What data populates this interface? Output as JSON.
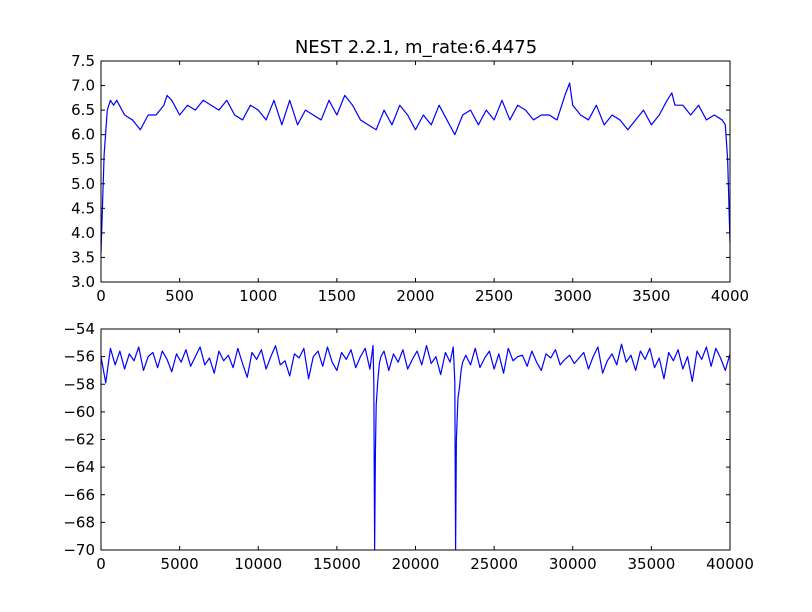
{
  "chart_data": [
    {
      "type": "line",
      "title": "NEST 2.2.1, m_rate:6.4475",
      "xlabel": "",
      "ylabel": "",
      "xlim": [
        0,
        4000
      ],
      "ylim": [
        3.0,
        7.5
      ],
      "xticks": [
        "0",
        "500",
        "1000",
        "1500",
        "2000",
        "2500",
        "3000",
        "3500",
        "4000"
      ],
      "yticks": [
        "3.0",
        "3.5",
        "4.0",
        "4.5",
        "5.0",
        "5.5",
        "6.0",
        "6.5",
        "7.0",
        "7.5"
      ],
      "grid": false,
      "line_color": "#0000ff",
      "series": [
        {
          "x": [
            0,
            20,
            40,
            60,
            80,
            100,
            150,
            200,
            250,
            300,
            350,
            400,
            420,
            450,
            500,
            550,
            600,
            650,
            700,
            750,
            800,
            850,
            900,
            950,
            1000,
            1050,
            1100,
            1150,
            1200,
            1250,
            1300,
            1350,
            1400,
            1450,
            1500,
            1550,
            1600,
            1650,
            1700,
            1750,
            1800,
            1850,
            1900,
            1950,
            2000,
            2050,
            2100,
            2150,
            2200,
            2250,
            2300,
            2350,
            2400,
            2450,
            2500,
            2550,
            2600,
            2650,
            2700,
            2750,
            2800,
            2850,
            2900,
            2950,
            2980,
            3000,
            3050,
            3100,
            3150,
            3200,
            3250,
            3300,
            3350,
            3400,
            3450,
            3500,
            3550,
            3600,
            3630,
            3650,
            3700,
            3750,
            3800,
            3850,
            3900,
            3950,
            3970,
            3985,
            4000
          ],
          "y": [
            3.6,
            5.6,
            6.5,
            6.7,
            6.6,
            6.7,
            6.4,
            6.3,
            6.1,
            6.4,
            6.4,
            6.6,
            6.8,
            6.7,
            6.4,
            6.6,
            6.5,
            6.7,
            6.6,
            6.5,
            6.7,
            6.4,
            6.3,
            6.6,
            6.5,
            6.3,
            6.7,
            6.2,
            6.7,
            6.2,
            6.5,
            6.4,
            6.3,
            6.7,
            6.4,
            6.8,
            6.6,
            6.3,
            6.2,
            6.1,
            6.5,
            6.2,
            6.6,
            6.4,
            6.1,
            6.4,
            6.2,
            6.6,
            6.3,
            6.0,
            6.4,
            6.5,
            6.2,
            6.5,
            6.3,
            6.7,
            6.3,
            6.6,
            6.5,
            6.3,
            6.4,
            6.4,
            6.3,
            6.8,
            7.05,
            6.6,
            6.4,
            6.3,
            6.6,
            6.2,
            6.4,
            6.3,
            6.1,
            6.3,
            6.5,
            6.2,
            6.4,
            6.7,
            6.85,
            6.6,
            6.6,
            6.4,
            6.6,
            6.3,
            6.4,
            6.3,
            6.2,
            5.5,
            3.8
          ]
        }
      ]
    },
    {
      "type": "line",
      "title": "",
      "xlabel": "",
      "ylabel": "",
      "xlim": [
        0,
        40000
      ],
      "ylim": [
        -70,
        -54
      ],
      "xticks": [
        "0",
        "5000",
        "10000",
        "15000",
        "20000",
        "25000",
        "30000",
        "35000",
        "40000"
      ],
      "yticks": [
        "−70",
        "−68",
        "−66",
        "−64",
        "−62",
        "−60",
        "−58",
        "−56",
        "−54"
      ],
      "grid": false,
      "line_color": "#0000ff",
      "series": [
        {
          "x": [
            0,
            300,
            600,
            900,
            1200,
            1500,
            1800,
            2100,
            2400,
            2700,
            3000,
            3300,
            3600,
            3900,
            4200,
            4500,
            4800,
            5100,
            5400,
            5700,
            6000,
            6300,
            6600,
            6900,
            7200,
            7500,
            7800,
            8100,
            8400,
            8700,
            9000,
            9300,
            9600,
            9900,
            10200,
            10500,
            10800,
            11100,
            11400,
            11700,
            12000,
            12300,
            12600,
            12900,
            13200,
            13500,
            13800,
            14100,
            14400,
            14700,
            15000,
            15300,
            15600,
            15900,
            16200,
            16500,
            16800,
            17100,
            17300,
            17350,
            17400,
            17450,
            17500,
            17600,
            17700,
            17800,
            18000,
            18300,
            18600,
            18900,
            19200,
            19500,
            19800,
            20100,
            20400,
            20700,
            21000,
            21300,
            21600,
            21900,
            22200,
            22400,
            22500,
            22550,
            22600,
            22700,
            22800,
            22900,
            23000,
            23200,
            23500,
            23800,
            24100,
            24400,
            24700,
            25000,
            25300,
            25600,
            25900,
            26200,
            26500,
            26800,
            27100,
            27400,
            27700,
            28000,
            28300,
            28600,
            28900,
            29200,
            29500,
            29800,
            30100,
            30400,
            30700,
            31000,
            31300,
            31600,
            31900,
            32200,
            32500,
            32800,
            33100,
            33400,
            33700,
            34000,
            34300,
            34600,
            34900,
            35200,
            35500,
            35800,
            36100,
            36400,
            36700,
            37000,
            37300,
            37600,
            37900,
            38200,
            38500,
            38800,
            39100,
            39400,
            39700,
            40000
          ],
          "y": [
            -56.0,
            -57.9,
            -55.4,
            -56.6,
            -55.6,
            -56.9,
            -55.8,
            -56.3,
            -55.3,
            -57.0,
            -56.0,
            -55.7,
            -56.8,
            -55.6,
            -56.2,
            -57.1,
            -55.8,
            -56.4,
            -55.5,
            -56.7,
            -56.0,
            -55.3,
            -56.6,
            -56.1,
            -57.2,
            -55.6,
            -56.3,
            -55.9,
            -56.8,
            -55.4,
            -56.5,
            -57.5,
            -55.7,
            -56.2,
            -55.5,
            -56.9,
            -56.0,
            -55.2,
            -56.6,
            -56.3,
            -57.4,
            -55.8,
            -56.1,
            -55.4,
            -57.6,
            -56.0,
            -55.6,
            -56.7,
            -55.3,
            -56.4,
            -57.0,
            -55.7,
            -56.2,
            -55.5,
            -56.8,
            -56.0,
            -55.4,
            -56.9,
            -55.2,
            -58.0,
            -70.0,
            -63.0,
            -59.5,
            -57.8,
            -56.5,
            -56.0,
            -55.6,
            -57.0,
            -55.8,
            -56.4,
            -55.5,
            -56.9,
            -56.2,
            -55.6,
            -56.6,
            -55.2,
            -56.5,
            -56.0,
            -57.3,
            -55.7,
            -56.4,
            -55.3,
            -57.8,
            -70.0,
            -62.0,
            -59.0,
            -58.2,
            -57.0,
            -56.4,
            -55.9,
            -56.6,
            -55.4,
            -56.8,
            -56.1,
            -55.6,
            -56.9,
            -55.8,
            -57.2,
            -55.4,
            -56.3,
            -56.0,
            -55.9,
            -56.7,
            -55.6,
            -56.4,
            -57.0,
            -55.8,
            -56.1,
            -55.5,
            -56.6,
            -56.2,
            -55.9,
            -56.5,
            -56.1,
            -55.7,
            -56.9,
            -56.0,
            -55.3,
            -57.2,
            -56.3,
            -55.8,
            -56.6,
            -55.1,
            -56.4,
            -55.9,
            -57.0,
            -55.6,
            -56.2,
            -55.4,
            -56.8,
            -56.1,
            -57.6,
            -55.7,
            -56.3,
            -55.5,
            -56.9,
            -56.0,
            -57.8,
            -55.6,
            -56.2,
            -55.3,
            -56.7,
            -55.4,
            -56.1,
            -57.0,
            -55.8
          ]
        }
      ]
    }
  ]
}
